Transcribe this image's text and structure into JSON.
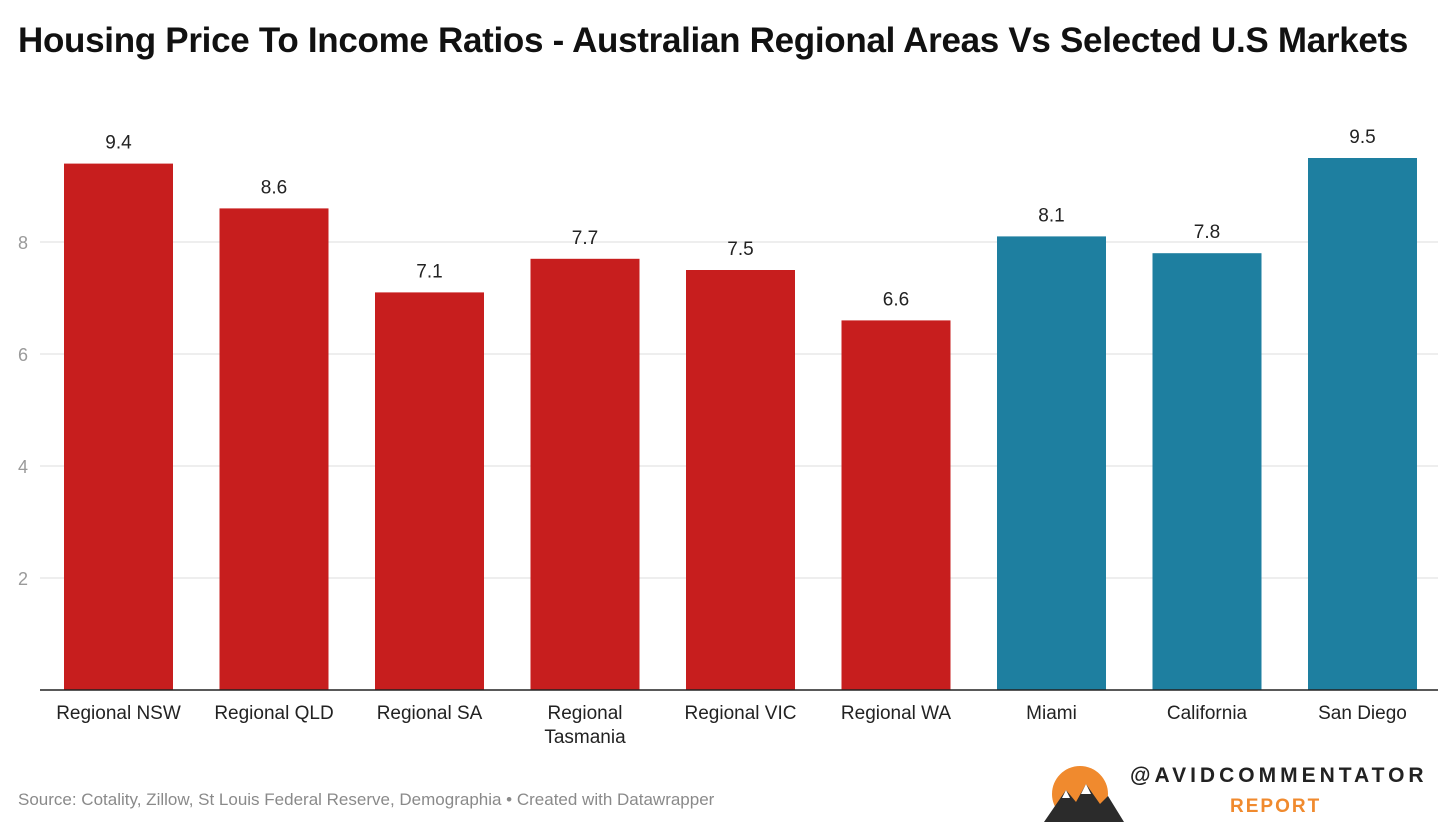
{
  "chart_data": {
    "type": "bar",
    "title": "Housing Price To Income Ratios - Australian Regional Areas Vs Selected U.S Markets",
    "categories": [
      "Regional NSW",
      "Regional QLD",
      "Regional SA",
      "Regional Tasmania",
      "Regional VIC",
      "Regional WA",
      "Miami",
      "California",
      "San Diego"
    ],
    "values": [
      9.4,
      8.6,
      7.1,
      7.7,
      7.5,
      6.6,
      8.1,
      7.8,
      9.5
    ],
    "data_labels": [
      "9.4",
      "8.6",
      "7.1",
      "7.7",
      "7.5",
      "6.6",
      "8.1",
      "7.8",
      "9.5"
    ],
    "bar_colors": [
      "#c71e1e",
      "#c71e1e",
      "#c71e1e",
      "#c71e1e",
      "#c71e1e",
      "#c71e1e",
      "#1e7fa0",
      "#1e7fa0",
      "#1e7fa0"
    ],
    "yticks": [
      2,
      4,
      6,
      8
    ],
    "ylim": [
      0,
      9.5
    ],
    "grid": true,
    "xlabel": "",
    "ylabel": ""
  },
  "source": "Source: Cotality, Zillow, St Louis Federal Reserve, Demographia • Created with Datawrapper",
  "logo": {
    "handle": "@AVIDCOMMENTATOR",
    "subtitle": "REPORT",
    "sun_color": "#f08a2e"
  }
}
